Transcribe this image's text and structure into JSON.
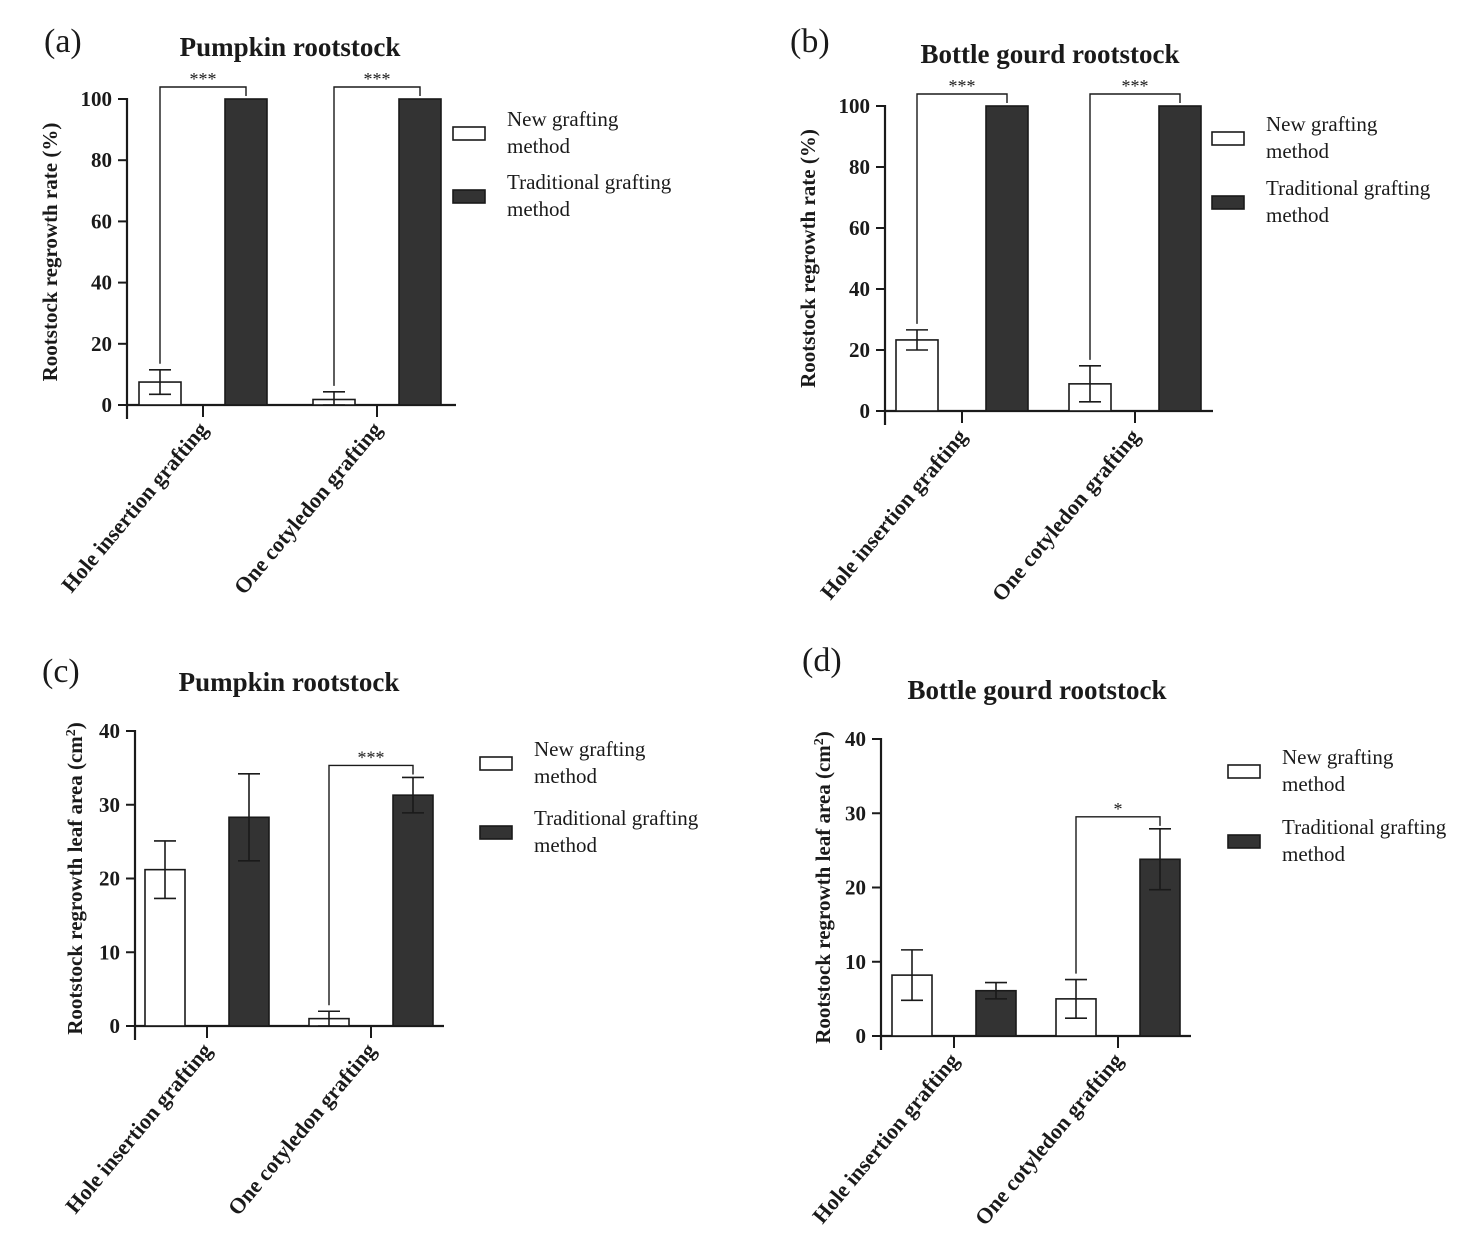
{
  "colors": {
    "new": "#ffffff",
    "traditional": "#333333",
    "axis": "#1a1a1a"
  },
  "chart_data": [
    {
      "type": "bar",
      "panel": "(a)",
      "title": "Pumpkin rootstock",
      "ylabel": "Rootstock regrowth rate (%)",
      "ylabel_sup": "",
      "ylabel_end": "",
      "ylim": [
        0,
        100
      ],
      "yticks": [
        "0",
        "20",
        "40",
        "60",
        "80",
        "100"
      ],
      "categories": [
        "Hole insertion grafting",
        "One cotyledon grafting"
      ],
      "series": [
        {
          "name": "New grafting method",
          "legend_lines": [
            "New grafting",
            "method"
          ],
          "values": [
            7.5,
            1.8
          ],
          "errors": [
            4,
            2.5
          ]
        },
        {
          "name": "Traditional grafting method",
          "legend_lines": [
            "Traditional grafting",
            "method"
          ],
          "values": [
            100,
            100
          ],
          "errors": [
            0,
            0
          ]
        }
      ],
      "significance": [
        "***",
        "***"
      ]
    },
    {
      "type": "bar",
      "panel": "(b)",
      "title": "Bottle gourd rootstock",
      "ylabel": "Rootstock regrowth rate (%)",
      "ylabel_sup": "",
      "ylabel_end": "",
      "ylim": [
        0,
        100
      ],
      "yticks": [
        "0",
        "20",
        "40",
        "60",
        "80",
        "100"
      ],
      "categories": [
        "Hole insertion grafting",
        "One cotyledon grafting"
      ],
      "series": [
        {
          "name": "New grafting method",
          "legend_lines": [
            "New grafting",
            "method"
          ],
          "values": [
            23.3,
            8.9
          ],
          "errors": [
            3.3,
            5.9
          ]
        },
        {
          "name": "Traditional grafting method",
          "legend_lines": [
            "Traditional grafting",
            "method"
          ],
          "values": [
            100,
            100
          ],
          "errors": [
            0,
            0
          ]
        }
      ],
      "significance": [
        "***",
        "***"
      ]
    },
    {
      "type": "bar",
      "panel": "(c)",
      "title": "Pumpkin rootstock",
      "ylabel": "Rootstock regrowth leaf area (cm",
      "ylabel_sup": "2",
      "ylabel_end": ")",
      "ylim": [
        0,
        40
      ],
      "yticks": [
        "0",
        "10",
        "20",
        "30",
        "40"
      ],
      "categories": [
        "Hole insertion grafting",
        "One cotyledon grafting"
      ],
      "series": [
        {
          "name": "New grafting method",
          "legend_lines": [
            "New grafting",
            "method"
          ],
          "values": [
            21.2,
            1.0
          ],
          "errors": [
            3.9,
            1.0
          ]
        },
        {
          "name": "Traditional grafting method",
          "legend_lines": [
            "Traditional grafting",
            "method"
          ],
          "values": [
            28.3,
            31.3
          ],
          "errors": [
            5.9,
            2.4
          ]
        }
      ],
      "significance": [
        "",
        "***"
      ]
    },
    {
      "type": "bar",
      "panel": "(d)",
      "title": "Bottle gourd rootstock",
      "ylabel": "Rootstock regrowth leaf area (cm",
      "ylabel_sup": "2",
      "ylabel_end": ")",
      "ylim": [
        0,
        40
      ],
      "yticks": [
        "0",
        "10",
        "20",
        "30",
        "40"
      ],
      "categories": [
        "Hole insertion grafting",
        "One cotyledon grafting"
      ],
      "series": [
        {
          "name": "New grafting method",
          "legend_lines": [
            "New grafting",
            "method"
          ],
          "values": [
            8.2,
            5.0
          ],
          "errors": [
            3.4,
            2.6
          ]
        },
        {
          "name": "Traditional grafting method",
          "legend_lines": [
            "Traditional grafting",
            "method"
          ],
          "values": [
            6.1,
            23.8
          ],
          "errors": [
            1.1,
            4.1
          ]
        }
      ],
      "significance": [
        "",
        "*"
      ]
    }
  ]
}
